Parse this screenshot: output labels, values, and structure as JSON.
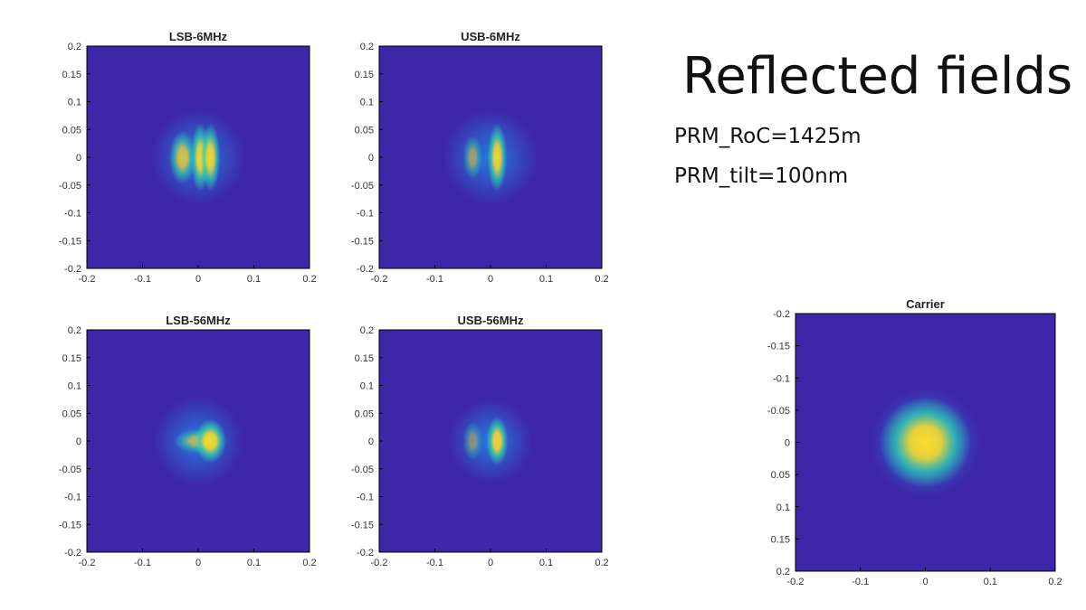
{
  "slide": {
    "title": "Reflected fields",
    "params": [
      "PRM_RoC=1425m",
      "PRM_tilt=100nm"
    ]
  },
  "colors": {
    "background": "#3e26a8",
    "low_glow": "#1f96ec",
    "mid": "#2ed0b0",
    "high": "#f9dc2c",
    "axis": "#000000"
  },
  "chart_data": [
    {
      "type": "heatmap",
      "title": "LSB-6MHz",
      "xlim": [
        -0.2,
        0.2
      ],
      "ylim": [
        -0.2,
        0.2
      ],
      "x_ticks": [
        "-0.2",
        "-0.1",
        "0",
        "0.1",
        "0.2"
      ],
      "y_ticks": [
        "0.2",
        "0.15",
        "0.1",
        "0.05",
        "0",
        "-0.05",
        "-0.1",
        "-0.15",
        "-0.2"
      ],
      "hotspots": [
        {
          "x": -0.028,
          "y": 0.0,
          "intensity": 0.82,
          "sx": 0.011,
          "sy": 0.022
        },
        {
          "x": 0.004,
          "y": 0.0,
          "intensity": 0.95,
          "sx": 0.008,
          "sy": 0.028
        },
        {
          "x": 0.022,
          "y": 0.0,
          "intensity": 0.95,
          "sx": 0.008,
          "sy": 0.028
        }
      ],
      "halo": {
        "x": 0.0,
        "y": 0.0,
        "r": 0.085
      }
    },
    {
      "type": "heatmap",
      "title": "USB-6MHz",
      "xlim": [
        -0.2,
        0.2
      ],
      "ylim": [
        -0.2,
        0.2
      ],
      "x_ticks": [
        "-0.2",
        "-0.1",
        "0",
        "0.1",
        "0.2"
      ],
      "y_ticks": [
        "0.2",
        "0.15",
        "0.1",
        "0.05",
        "0",
        "-0.05",
        "-0.1",
        "-0.15",
        "-0.2"
      ],
      "hotspots": [
        {
          "x": -0.032,
          "y": 0.0,
          "intensity": 0.55,
          "sx": 0.008,
          "sy": 0.018
        },
        {
          "x": 0.012,
          "y": 0.0,
          "intensity": 0.95,
          "sx": 0.008,
          "sy": 0.028
        }
      ],
      "halo": {
        "x": 0.0,
        "y": 0.0,
        "r": 0.085
      }
    },
    {
      "type": "heatmap",
      "title": "LSB-56MHz",
      "xlim": [
        -0.2,
        0.2
      ],
      "ylim": [
        -0.2,
        0.2
      ],
      "x_ticks": [
        "-0.2",
        "-0.1",
        "0",
        "0.1",
        "0.2"
      ],
      "y_ticks": [
        "0.2",
        "0.15",
        "0.1",
        "0.05",
        "0",
        "-0.05",
        "-0.1",
        "-0.15",
        "-0.2"
      ],
      "hotspots": [
        {
          "x": 0.0,
          "y": 0.0,
          "intensity": 0.7,
          "sx": 0.02,
          "sy": 0.01
        },
        {
          "x": 0.022,
          "y": 0.0,
          "intensity": 0.98,
          "sx": 0.013,
          "sy": 0.018
        }
      ],
      "halo": {
        "x": 0.0,
        "y": 0.0,
        "r": 0.08
      }
    },
    {
      "type": "heatmap",
      "title": "USB-56MHz",
      "xlim": [
        -0.2,
        0.2
      ],
      "ylim": [
        -0.2,
        0.2
      ],
      "x_ticks": [
        "-0.2",
        "-0.1",
        "0",
        "0.1",
        "0.2"
      ],
      "y_ticks": [
        "0.2",
        "0.15",
        "0.1",
        "0.05",
        "0",
        "-0.05",
        "-0.1",
        "-0.15",
        "-0.2"
      ],
      "hotspots": [
        {
          "x": -0.032,
          "y": 0.0,
          "intensity": 0.45,
          "sx": 0.008,
          "sy": 0.016
        },
        {
          "x": 0.012,
          "y": 0.0,
          "intensity": 0.95,
          "sx": 0.009,
          "sy": 0.02
        }
      ],
      "halo": {
        "x": 0.0,
        "y": 0.0,
        "r": 0.075
      }
    },
    {
      "type": "heatmap",
      "title": "Carrier",
      "xlim": [
        -0.2,
        0.2
      ],
      "ylim": [
        -0.2,
        0.2
      ],
      "x_ticks": [
        "-0.2",
        "-0.1",
        "0",
        "0.1",
        "0.2"
      ],
      "y_ticks": [
        "-0.2",
        "-0.15",
        "-0.1",
        "-0.05",
        "0",
        "0.05",
        "0.1",
        "0.15",
        "0.2"
      ],
      "hotspots": [
        {
          "x": 0.0,
          "y": 0.0,
          "intensity": 1.0,
          "sx": 0.032,
          "sy": 0.032
        }
      ],
      "halo": {
        "x": 0.0,
        "y": 0.0,
        "r": 0.085
      }
    }
  ]
}
